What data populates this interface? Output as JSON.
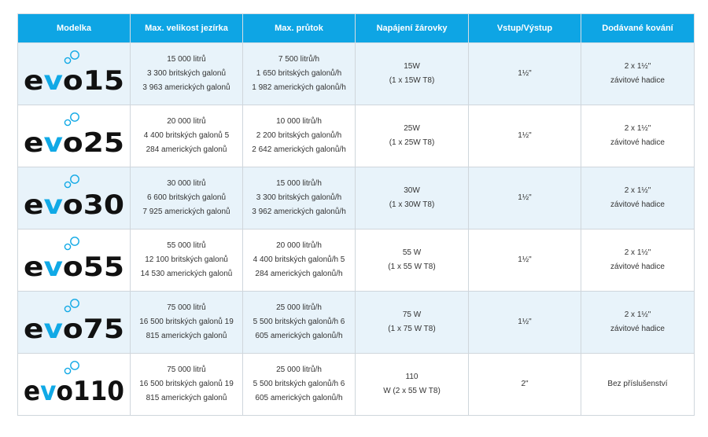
{
  "columns": [
    "Modelka",
    "Max. velikost jezírka",
    "Max. průtok",
    "Napájení žárovky",
    "Vstup/Výstup",
    "Dodávané kování"
  ],
  "colors": {
    "header_bg": "#0ea5e4",
    "row_shade": "#e8f3fa",
    "logo_v": "#10a9e6",
    "logo_text": "#111111"
  },
  "rows": [
    {
      "model": {
        "prefix": "evo",
        "number": "15"
      },
      "pond": [
        "15 000 litrů",
        "3 300 britských galonů",
        "3 963 amerických galonů"
      ],
      "flow": [
        "7 500 litrů/h",
        "1 650 britských galonů/h",
        "1 982 amerických galonů/h"
      ],
      "power": [
        "15W",
        "(1 x 15W T8)"
      ],
      "io": "1½\"",
      "fittings": [
        "2 x 1½\"",
        "závitové hadice"
      ]
    },
    {
      "model": {
        "prefix": "evo",
        "number": "25"
      },
      "pond": [
        "20 000 litrů",
        "4 400 britských galonů 5",
        "284 amerických galonů"
      ],
      "flow": [
        "10 000 litrů/h",
        "2 200 britských galonů/h",
        "2 642 amerických galonů/h"
      ],
      "power": [
        "25W",
        "(1 x 25W T8)"
      ],
      "io": "1½\"",
      "fittings": [
        "2 x 1½\"",
        "závitové hadice"
      ]
    },
    {
      "model": {
        "prefix": "evo",
        "number": "30"
      },
      "pond": [
        "30 000 litrů",
        "6 600 britských galonů",
        "7 925 amerických galonů"
      ],
      "flow": [
        "15 000 litrů/h",
        "3 300 britských galonů/h",
        "3 962 amerických galonů/h"
      ],
      "power": [
        "30W",
        "(1 x 30W T8)"
      ],
      "io": "1½\"",
      "fittings": [
        "2 x 1½\"",
        "závitové hadice"
      ]
    },
    {
      "model": {
        "prefix": "evo",
        "number": "55"
      },
      "pond": [
        "55 000 litrů",
        "12 100 britských galonů",
        "14 530 amerických galonů"
      ],
      "flow": [
        "20 000 litrů/h",
        "4 400 britských galonů/h 5",
        "284 amerických galonů/h"
      ],
      "power": [
        "55 W",
        "(1 x 55 W T8)"
      ],
      "io": "1½\"",
      "fittings": [
        "2 x 1½\"",
        "závitové hadice"
      ]
    },
    {
      "model": {
        "prefix": "evo",
        "number": "75"
      },
      "pond": [
        "75 000 litrů",
        "16 500 britských galonů 19",
        "815 amerických galonů"
      ],
      "flow": [
        "25 000 litrů/h",
        "5 500 britských galonů/h 6",
        "605 amerických galonů/h"
      ],
      "power": [
        "75 W",
        "(1 x 75 W T8)"
      ],
      "io": "1½\"",
      "fittings": [
        "2 x 1½\"",
        "závitové hadice"
      ]
    },
    {
      "model": {
        "prefix": "evo",
        "number": "110"
      },
      "pond": [
        "75 000 litrů",
        "16 500 britských galonů 19",
        "815 amerických galonů"
      ],
      "flow": [
        "25 000 litrů/h",
        "5 500 britských galonů/h 6",
        "605 amerických galonů/h"
      ],
      "power": [
        "110",
        "W (2 x 55 W T8)"
      ],
      "io": "2\"",
      "fittings": [
        "Bez příslušenství"
      ]
    }
  ]
}
